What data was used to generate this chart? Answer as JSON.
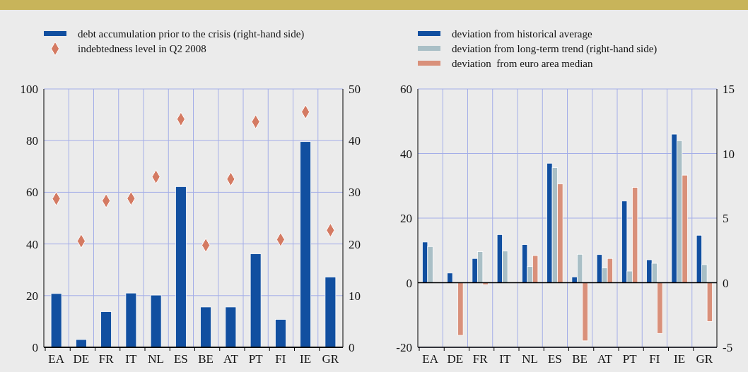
{
  "chart_data": [
    {
      "type": "bar",
      "categories": [
        "EA",
        "DE",
        "FR",
        "IT",
        "NL",
        "ES",
        "BE",
        "AT",
        "PT",
        "FI",
        "IE",
        "GR"
      ],
      "ylim": [
        0,
        100
      ],
      "yticks": [
        0,
        20,
        40,
        60,
        80,
        100
      ],
      "y2lim": [
        0,
        50
      ],
      "y2ticks": [
        0,
        10,
        20,
        30,
        40,
        50
      ],
      "grid": true,
      "legend": "top",
      "series": [
        {
          "name": "debt accumulation prior to the crisis (right-hand side)",
          "axis": "y2",
          "color": "#114fa0",
          "values": [
            10.4,
            1.5,
            6.9,
            10.5,
            10.1,
            31.1,
            7.8,
            7.8,
            18.1,
            5.4,
            39.8,
            13.6
          ]
        },
        {
          "name": "indebtedness level in Q2 2008",
          "type": "scatter",
          "marker": "diamond",
          "color": "#d47a62",
          "values": [
            57.5,
            41.1,
            56.7,
            57.6,
            66.0,
            88.3,
            39.5,
            65.1,
            87.3,
            41.7,
            91.1,
            45.3
          ]
        }
      ]
    },
    {
      "type": "bar",
      "categories": [
        "EA",
        "DE",
        "FR",
        "IT",
        "NL",
        "ES",
        "BE",
        "AT",
        "PT",
        "FI",
        "IE",
        "GR"
      ],
      "ylim": [
        -20,
        60
      ],
      "yticks": [
        -20,
        0,
        20,
        40,
        60
      ],
      "y2lim": [
        -5,
        15
      ],
      "y2ticks": [
        -5,
        0,
        5,
        10,
        15
      ],
      "grid": true,
      "legend": "top",
      "series": [
        {
          "name": "deviation from historical average",
          "color": "#114fa0",
          "values": [
            12.6,
            3.0,
            7.5,
            14.9,
            11.8,
            37.0,
            1.8,
            8.7,
            25.3,
            7.1,
            46.0,
            14.7
          ]
        },
        {
          "name": "deviation from long-term trend (right-hand side)",
          "axis": "y2",
          "color": "#a9bfc6",
          "values": [
            2.8,
            0,
            2.4,
            2.45,
            1.25,
            8.9,
            2.2,
            1.15,
            0.9,
            1.5,
            11.0,
            1.4
          ]
        },
        {
          "name": "deviation  from euro area median",
          "color": "#d9907a",
          "values": [
            0,
            -16.3,
            -0.6,
            0,
            8.4,
            30.6,
            -18.0,
            7.5,
            29.5,
            -15.7,
            33.3,
            -12.0
          ]
        }
      ]
    }
  ]
}
